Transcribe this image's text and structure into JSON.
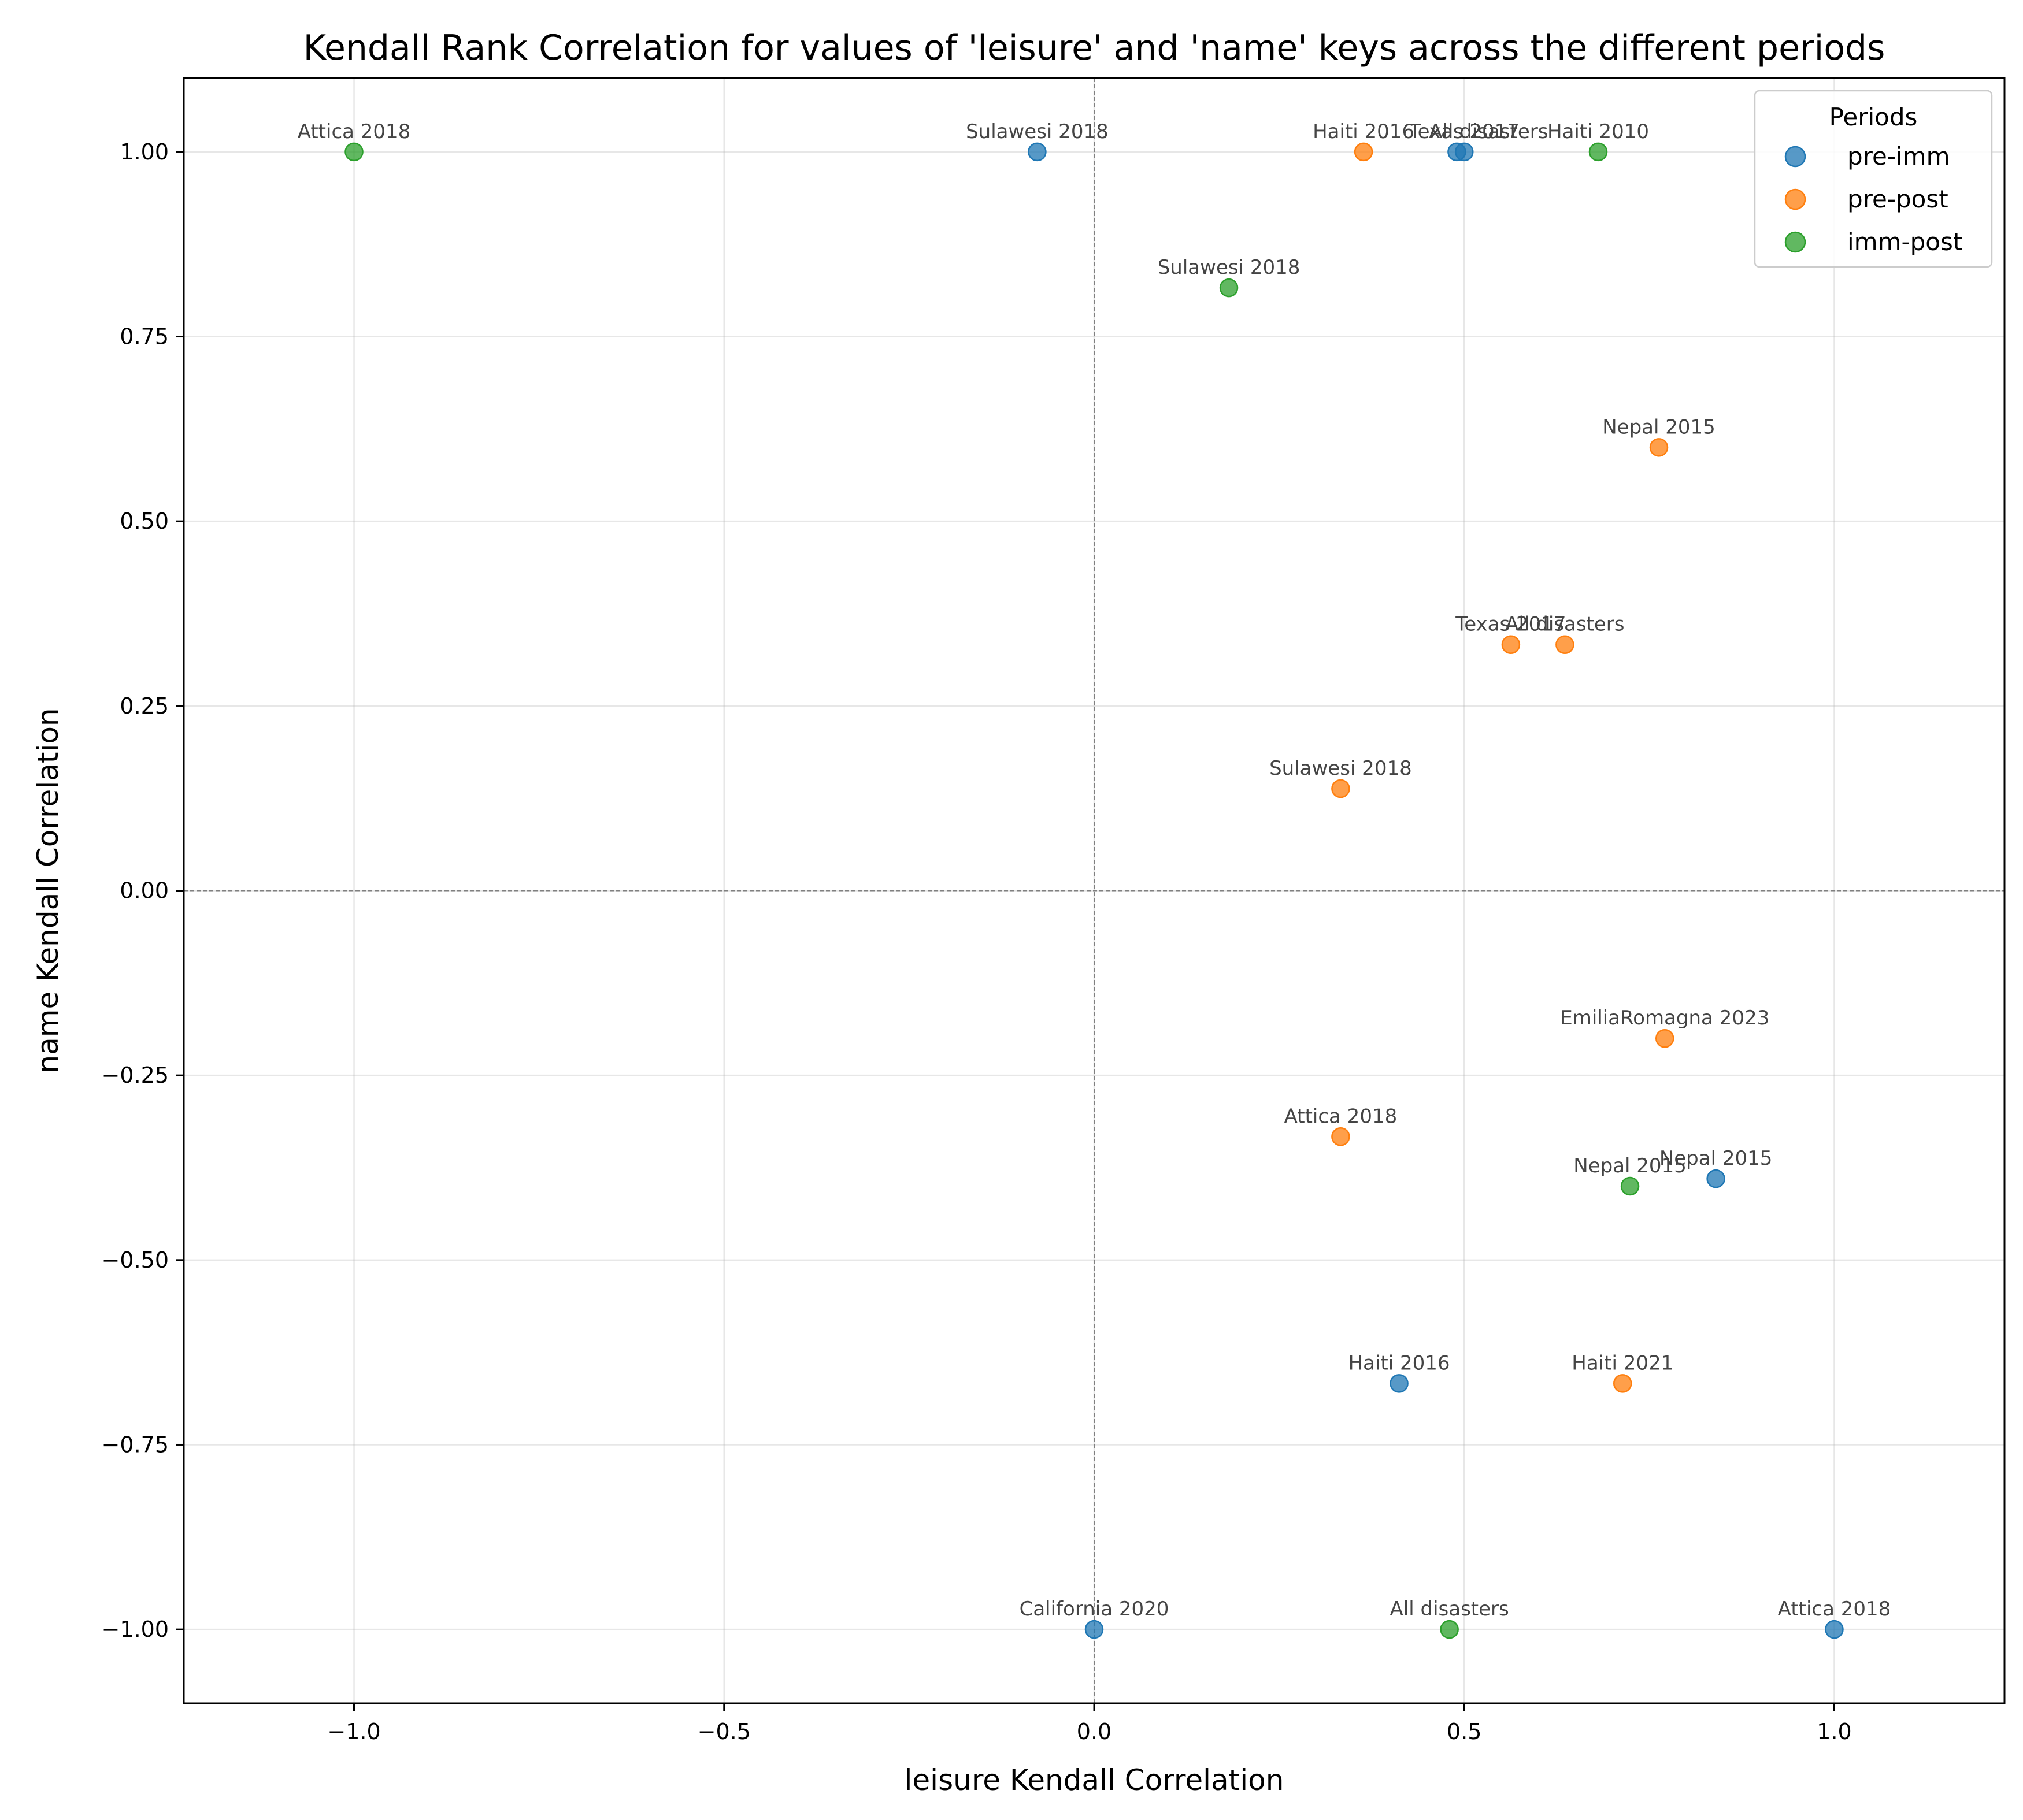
{
  "chart_data": {
    "type": "scatter",
    "title": "Kendall Rank Correlation for values of 'leisure' and 'name' keys across the different periods",
    "xlabel": "leisure Kendall Correlation",
    "ylabel": "name Kendall Correlation",
    "xlim": [
      -1.23,
      1.23
    ],
    "ylim": [
      -1.1,
      1.1
    ],
    "xticks": [
      -1.0,
      -0.5,
      0.0,
      0.5,
      1.0
    ],
    "xtick_labels": [
      "−1.0",
      "−0.5",
      "0.0",
      "0.5",
      "1.0"
    ],
    "yticks": [
      -1.0,
      -0.75,
      -0.5,
      -0.25,
      0.0,
      0.25,
      0.5,
      0.75,
      1.0
    ],
    "ytick_labels": [
      "−1.00",
      "−0.75",
      "−0.50",
      "−0.25",
      "0.00",
      "0.25",
      "0.50",
      "0.75",
      "1.00"
    ],
    "grid": true,
    "reference_lines": {
      "x": 0,
      "y": 0
    },
    "legend": {
      "title": "Periods",
      "placement": "upper right"
    },
    "series": [
      {
        "name": "pre-imm",
        "color": "#1f77b4",
        "points": [
          {
            "x": -0.077,
            "y": 1.0,
            "label": "Sulawesi 2018"
          },
          {
            "x": 0.5,
            "y": 1.0,
            "label": "Texas 2017"
          },
          {
            "x": 0.49,
            "y": 1.0,
            "label": ""
          },
          {
            "x": 0.84,
            "y": -0.39,
            "label": "Nepal 2015"
          },
          {
            "x": 0.412,
            "y": -0.667,
            "label": "Haiti 2016"
          },
          {
            "x": 0.0,
            "y": -1.0,
            "label": "California 2020"
          },
          {
            "x": 1.0,
            "y": -1.0,
            "label": "Attica 2018"
          }
        ]
      },
      {
        "name": "pre-post",
        "color": "#ff7f0e",
        "points": [
          {
            "x": 0.364,
            "y": 1.0,
            "label": "Haiti 2016"
          },
          {
            "x": 0.763,
            "y": 0.6,
            "label": "Nepal 2015"
          },
          {
            "x": 0.563,
            "y": 0.333,
            "label": "Texas 2017"
          },
          {
            "x": 0.636,
            "y": 0.333,
            "label": "All disasters"
          },
          {
            "x": 0.333,
            "y": 0.138,
            "label": "Sulawesi 2018"
          },
          {
            "x": 0.771,
            "y": -0.2,
            "label": "EmiliaRomagna 2023"
          },
          {
            "x": 0.333,
            "y": -0.333,
            "label": "Attica 2018"
          },
          {
            "x": 0.714,
            "y": -0.667,
            "label": "Haiti 2021"
          }
        ]
      },
      {
        "name": "imm-post",
        "color": "#2ca02c",
        "points": [
          {
            "x": -1.0,
            "y": 1.0,
            "label": "Attica 2018"
          },
          {
            "x": 0.681,
            "y": 1.0,
            "label": "Haiti 2010"
          },
          {
            "x": 0.182,
            "y": 0.816,
            "label": "Sulawesi 2018"
          },
          {
            "x": 0.724,
            "y": -0.4,
            "label": "Nepal 2015"
          },
          {
            "x": 0.48,
            "y": -1.0,
            "label": "All disasters"
          }
        ]
      }
    ],
    "extra_labels": [
      {
        "x": 0.447,
        "y": 1.0,
        "label": "All disasters"
      }
    ]
  }
}
